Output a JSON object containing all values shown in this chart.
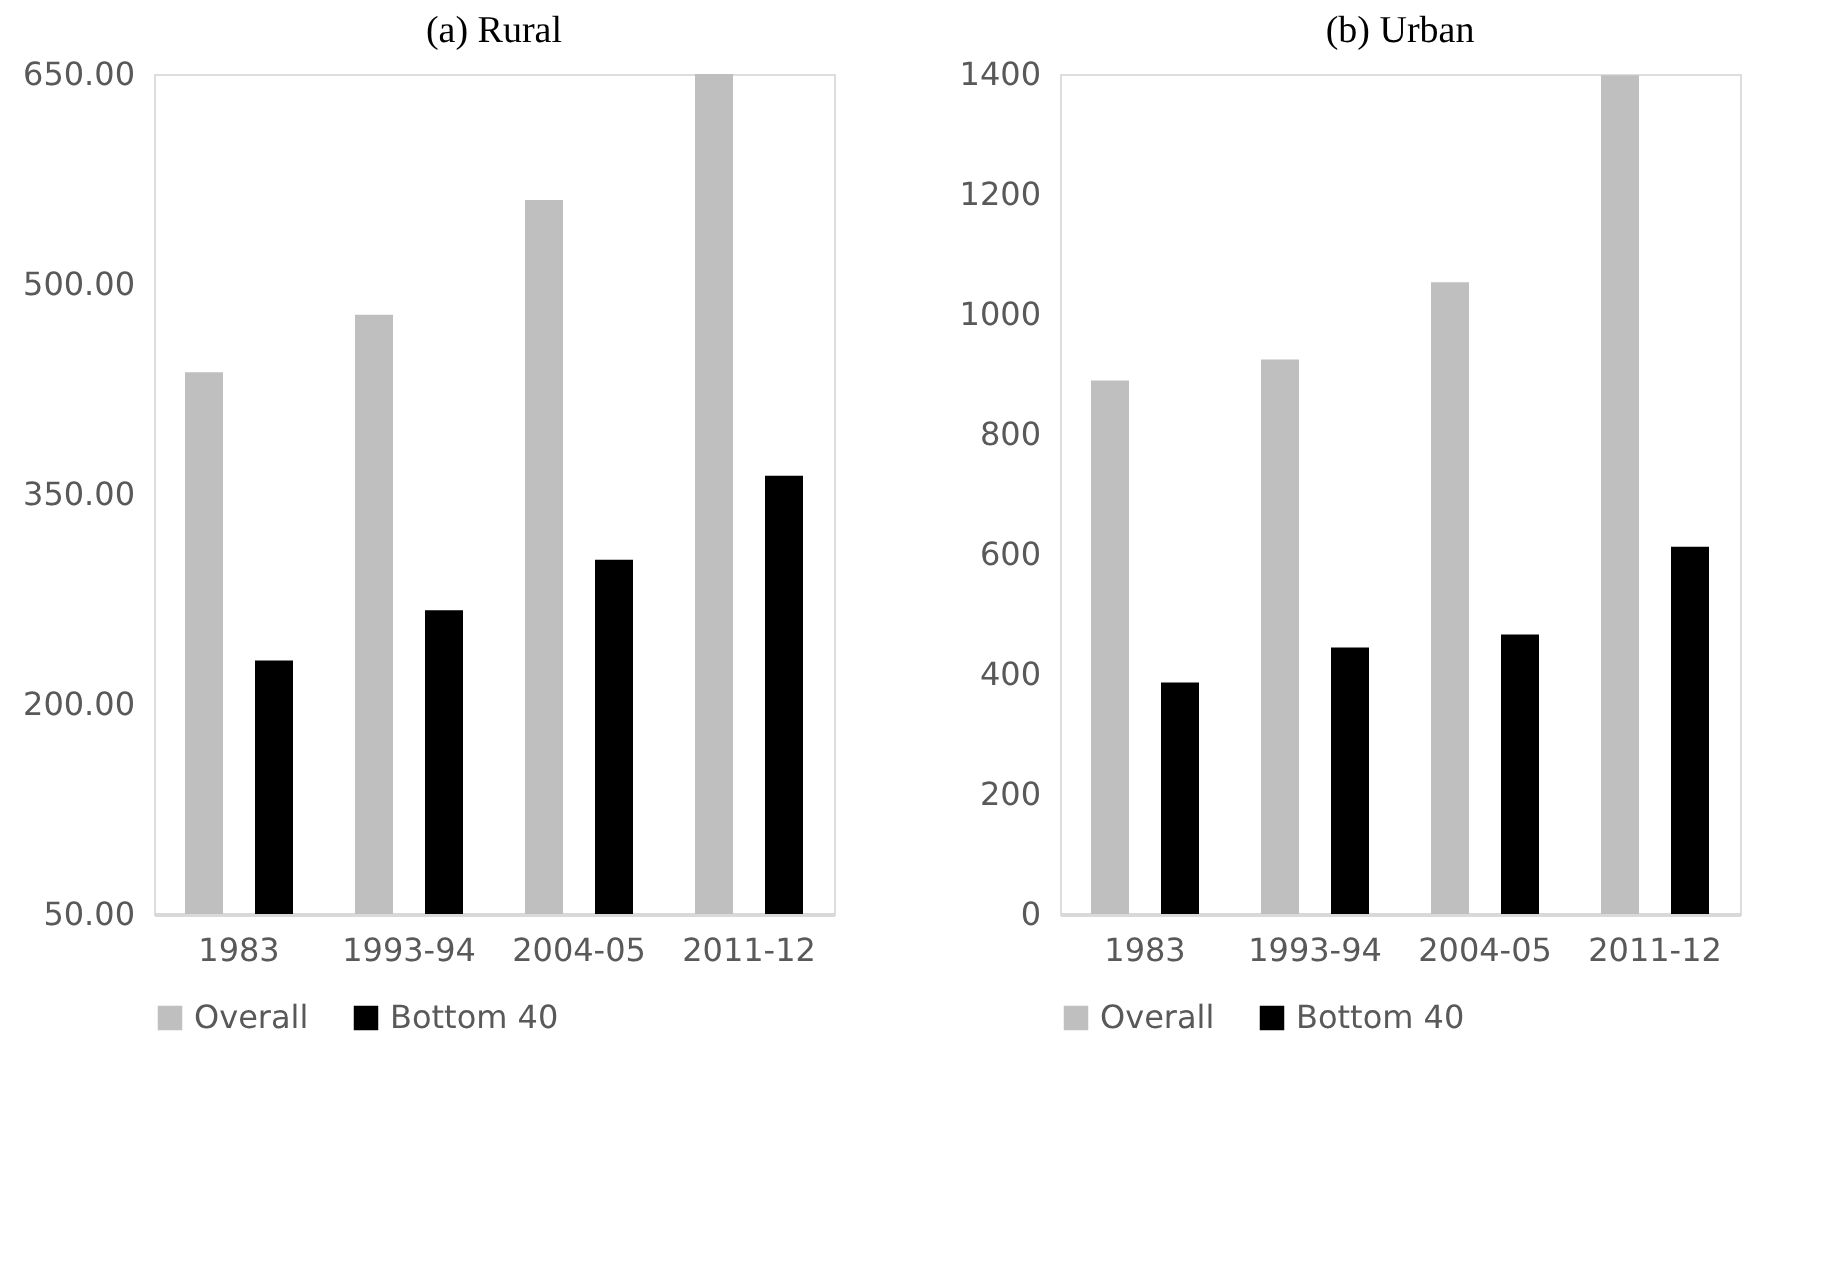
{
  "chart_data": [
    {
      "type": "bar",
      "title": "(a)  Rural",
      "categories": [
        "1983",
        "1993-94",
        "2004-05",
        "2011-12"
      ],
      "series": [
        {
          "name": "Overall",
          "color": "#bfbfbf",
          "values": [
            437,
            478,
            560,
            650
          ]
        },
        {
          "name": "Bottom 40",
          "color": "#000000",
          "values": [
            231,
            267,
            303,
            363
          ]
        }
      ],
      "ylim": [
        50,
        650
      ],
      "yticks": [
        {
          "value": 50,
          "label": "50.00"
        },
        {
          "value": 200,
          "label": "200.00"
        },
        {
          "value": 350,
          "label": "350.00"
        },
        {
          "value": 500,
          "label": "500.00"
        },
        {
          "value": 650,
          "label": "650.00"
        }
      ],
      "grid": false,
      "legend": "bottom"
    },
    {
      "type": "bar",
      "title": "(b)  Urban",
      "categories": [
        "1983",
        "1993-94",
        "2004-05",
        "2011-12"
      ],
      "series": [
        {
          "name": "Overall",
          "color": "#bfbfbf",
          "values": [
            889,
            924,
            1053,
            1398
          ]
        },
        {
          "name": "Bottom 40",
          "color": "#000000",
          "values": [
            386,
            444,
            466,
            612
          ]
        }
      ],
      "ylim": [
        0,
        1400
      ],
      "yticks": [
        0,
        200,
        400,
        600,
        800,
        1000,
        1200,
        1400
      ],
      "grid": false,
      "legend": "bottom"
    }
  ]
}
